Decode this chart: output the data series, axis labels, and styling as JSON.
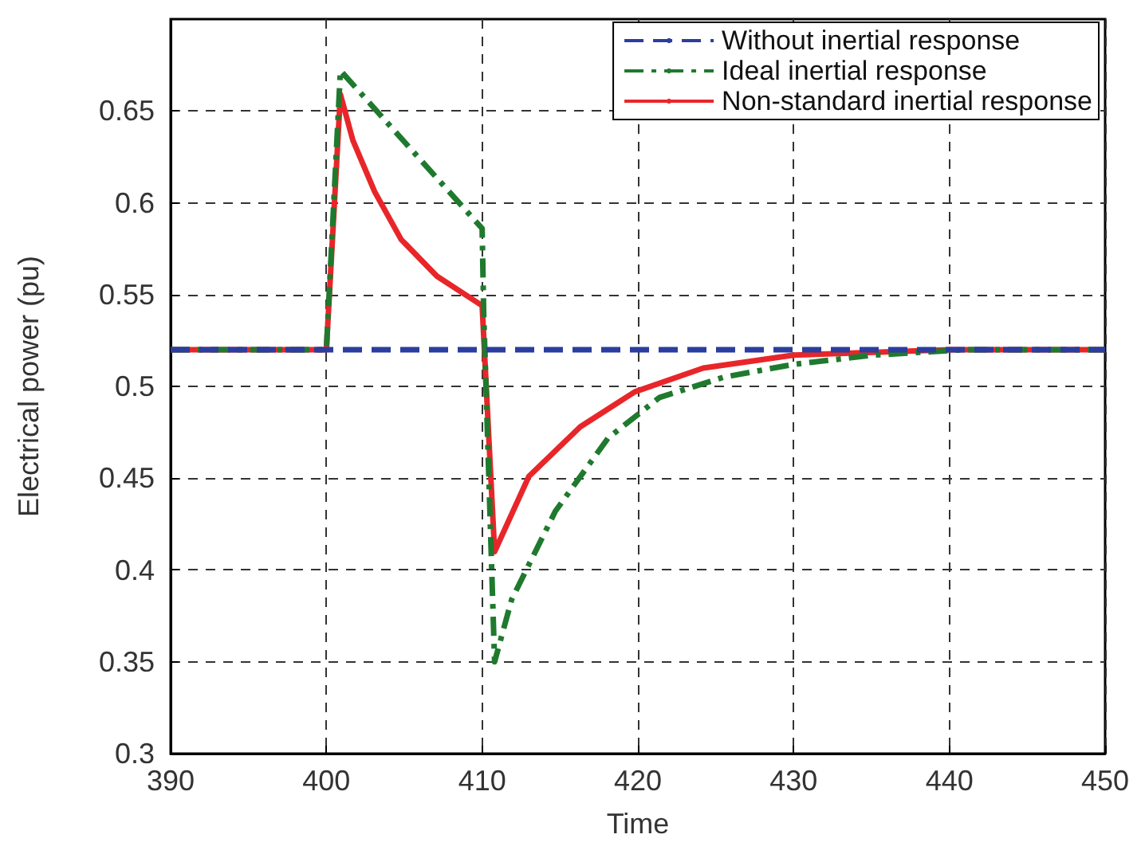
{
  "chart_data": {
    "type": "line",
    "xlabel": "Time",
    "ylabel": "Electrical power (pu)",
    "xlim": [
      390,
      450
    ],
    "xticks": [
      390,
      400,
      410,
      420,
      430,
      440,
      450
    ],
    "ylim": [
      0.3,
      0.7
    ],
    "yticks": [
      0.3,
      0.35,
      0.4,
      0.45,
      0.5,
      0.55,
      0.6,
      0.65
    ],
    "grid": true,
    "legend": "top right",
    "marker": "none",
    "series": [
      {
        "name": "Without inertial response",
        "color": "#2b3d9e",
        "line_style": "dashed",
        "x": [
          390,
          450
        ],
        "values": [
          0.52,
          0.52
        ]
      },
      {
        "name": "Ideal inertial response",
        "color": "#1f7a2e",
        "line_style": "dashdot",
        "x": [
          390,
          400,
          400.9,
          410,
          410.1,
          410.8,
          411.9,
          414.7,
          418.1,
          421.4,
          425.5,
          430,
          435.1,
          441,
          450
        ],
        "values": [
          0.52,
          0.52,
          0.672,
          0.586,
          0.54,
          0.35,
          0.384,
          0.432,
          0.472,
          0.494,
          0.505,
          0.512,
          0.517,
          0.52,
          0.52
        ]
      },
      {
        "name": "Non-standard inertial response",
        "color": "#e8262a",
        "line_style": "solid",
        "x": [
          390,
          400,
          400.9,
          401.7,
          403.1,
          404.8,
          407.1,
          410,
          410.8,
          413,
          416.3,
          419.8,
          424.2,
          430,
          440,
          450
        ],
        "values": [
          0.52,
          0.52,
          0.659,
          0.634,
          0.606,
          0.58,
          0.56,
          0.544,
          0.41,
          0.451,
          0.478,
          0.497,
          0.51,
          0.517,
          0.52,
          0.52
        ]
      }
    ]
  }
}
